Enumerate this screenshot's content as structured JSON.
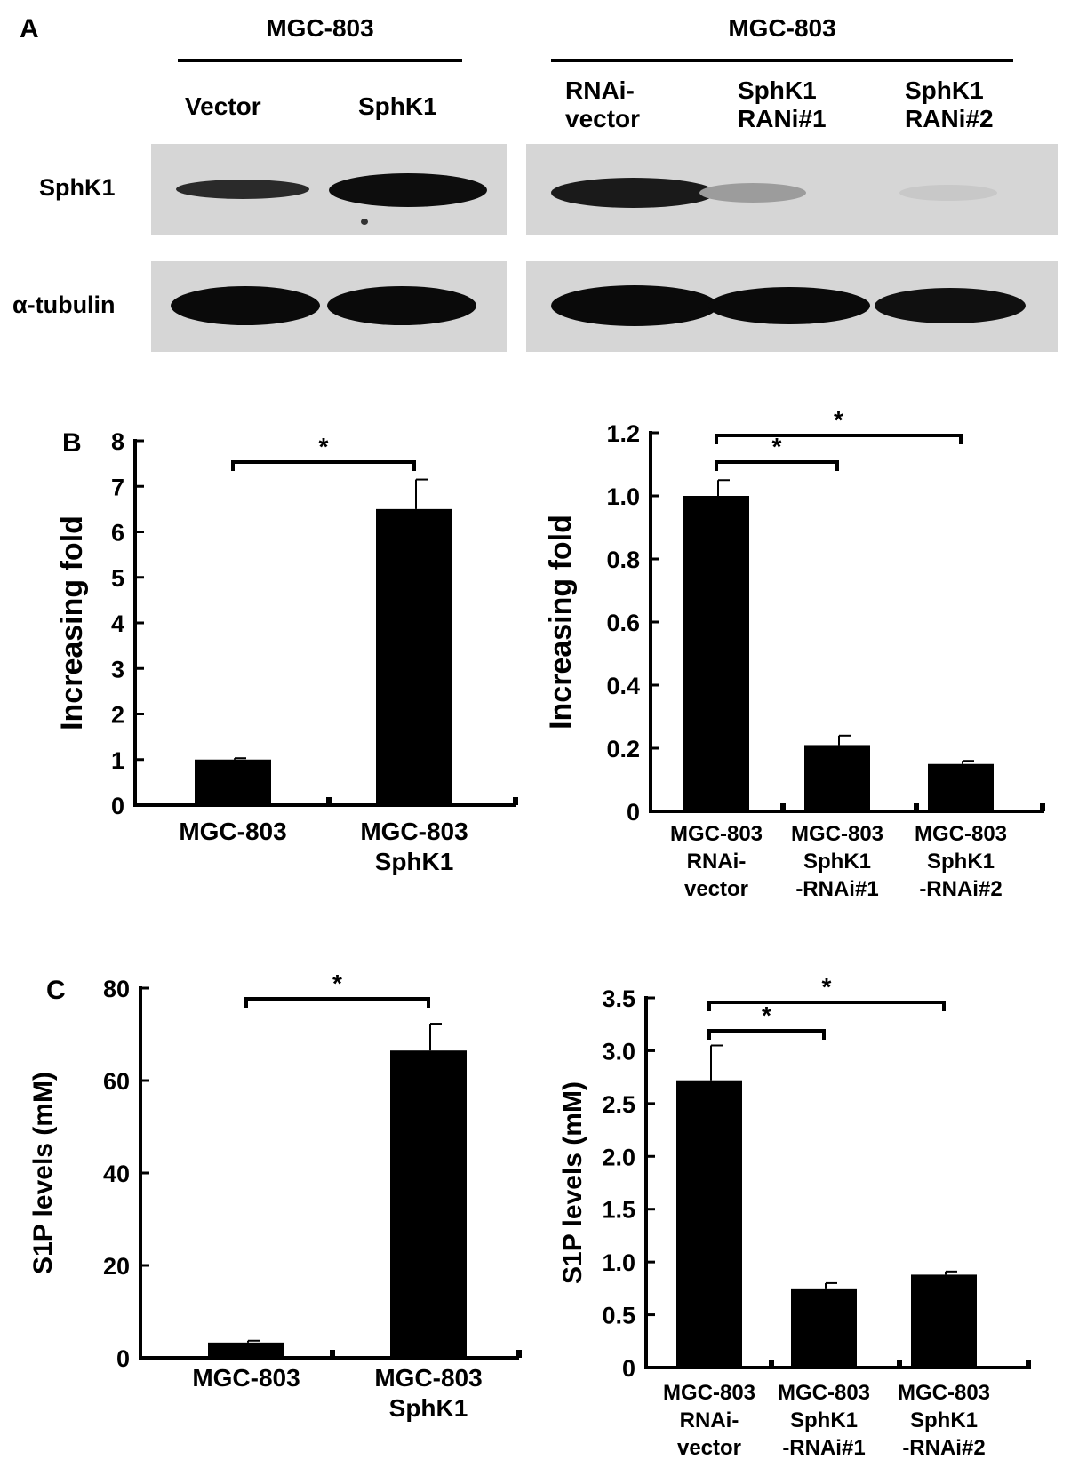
{
  "panel_a": {
    "letter": "A",
    "left": {
      "header": "MGC-803",
      "lanes": [
        "Vector",
        "SphK1"
      ]
    },
    "right": {
      "header": "MGC-803",
      "lanes": [
        [
          "RNAi-",
          "vector"
        ],
        [
          "SphK1",
          "RANi#1"
        ],
        [
          "SphK1",
          "RANi#2"
        ]
      ]
    },
    "rows": [
      "SphK1",
      "α-tubulin"
    ]
  },
  "chart_data": [
    {
      "panel": "B",
      "type": "bar",
      "categories": [
        [
          "MGC-803"
        ],
        [
          "MGC-803",
          "SphK1"
        ]
      ],
      "values": [
        1.0,
        6.5
      ],
      "errors": [
        0.03,
        0.65
      ],
      "ylabel": "Increasing fold",
      "ylim": [
        0,
        8
      ],
      "yticks": [
        "0",
        "1",
        "2",
        "3",
        "4",
        "5",
        "6",
        "7",
        "8"
      ],
      "significance": [
        {
          "from": 0,
          "to": 1,
          "label": "*"
        }
      ]
    },
    {
      "panel": "",
      "type": "bar",
      "categories": [
        [
          "MGC-803",
          "RNAi-",
          "vector"
        ],
        [
          "MGC-803",
          "SphK1",
          "-RNAi#1"
        ],
        [
          "MGC-803",
          "SphK1",
          "-RNAi#2"
        ]
      ],
      "values": [
        1.0,
        0.21,
        0.15
      ],
      "errors": [
        0.05,
        0.03,
        0.01
      ],
      "ylabel": "Increasing fold",
      "ylim": [
        0,
        1.2
      ],
      "yticks": [
        "0",
        "0.2",
        "0.4",
        "0.6",
        "0.8",
        "1.0",
        "1.2"
      ],
      "significance": [
        {
          "from": 0,
          "to": 1,
          "label": "*"
        },
        {
          "from": 0,
          "to": 2,
          "label": "*"
        }
      ]
    },
    {
      "panel": "C",
      "type": "bar",
      "categories": [
        [
          "MGC-803"
        ],
        [
          "MGC-803",
          "SphK1"
        ]
      ],
      "values": [
        3.3,
        66.5
      ],
      "errors": [
        0.4,
        5.8
      ],
      "ylabel": "S1P levels (mM)",
      "ylim": [
        0,
        80
      ],
      "yticks": [
        "0",
        "20",
        "40",
        "60",
        "80"
      ],
      "significance": [
        {
          "from": 0,
          "to": 1,
          "label": "*"
        }
      ]
    },
    {
      "panel": "",
      "type": "bar",
      "categories": [
        [
          "MGC-803",
          "RNAi-",
          "vector"
        ],
        [
          "MGC-803",
          "SphK1",
          "-RNAi#1"
        ],
        [
          "MGC-803",
          "SphK1",
          "-RNAi#2"
        ]
      ],
      "values": [
        2.72,
        0.75,
        0.88
      ],
      "errors": [
        0.33,
        0.05,
        0.03
      ],
      "ylabel": "S1P levels (mM)",
      "ylim": [
        0,
        3.5
      ],
      "yticks": [
        "0",
        "0.5",
        "1.0",
        "1.5",
        "2.0",
        "2.5",
        "3.0",
        "3.5"
      ],
      "significance": [
        {
          "from": 0,
          "to": 1,
          "label": "*"
        },
        {
          "from": 0,
          "to": 2,
          "label": "*"
        }
      ]
    }
  ]
}
